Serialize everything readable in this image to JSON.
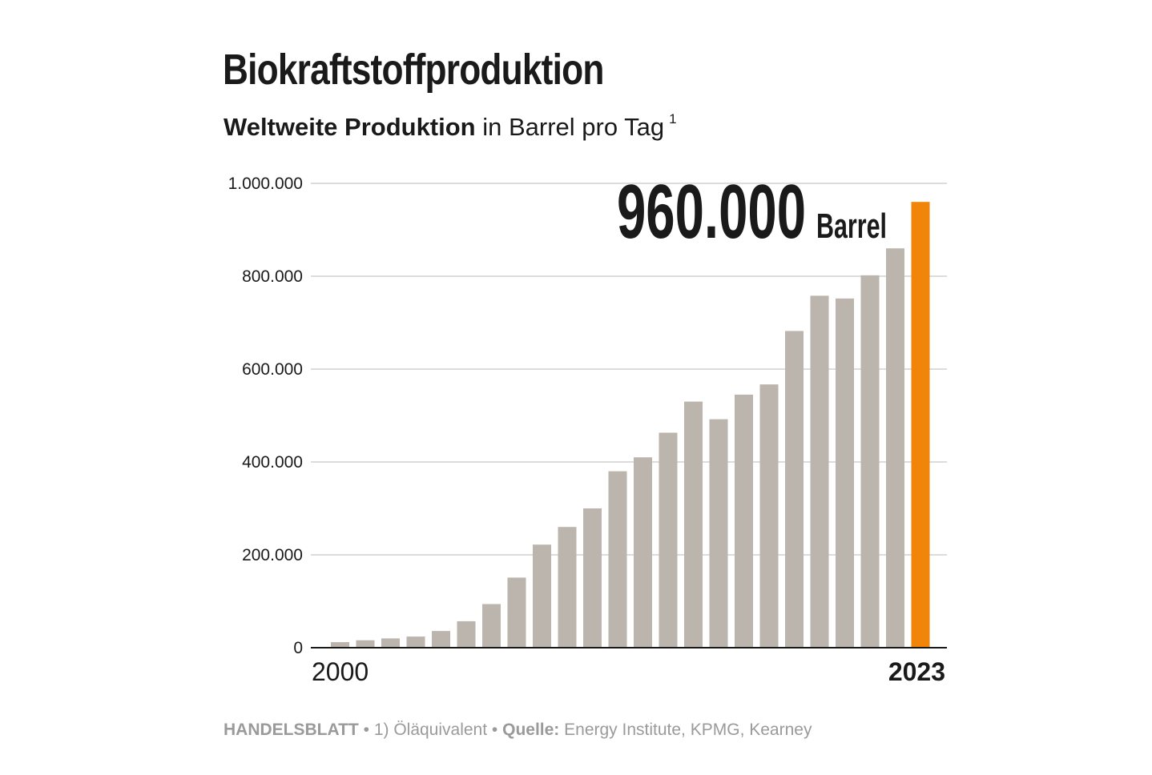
{
  "title": "Biokraftstoffproduktion",
  "subtitle": {
    "bold": "Weltweite Produktion",
    "rest": "in Barrel pro Tag",
    "footnote_mark": "1"
  },
  "highlight": {
    "value_text": "960.000",
    "unit_text": "Barrel"
  },
  "colors": {
    "bar": "#bbb5ad",
    "highlight_bar": "#f0850a",
    "grid": "#c8c8c8",
    "text": "#1a1a1a",
    "footer": "#9a9a9a"
  },
  "footer": {
    "brand": "HANDELSBLATT",
    "separator": "•",
    "note": "1) Öläquivalent",
    "source_label": "Quelle:",
    "source": "Energy Institute, KPMG, Kearney"
  },
  "chart_data": {
    "type": "bar",
    "categories": [
      "2000",
      "2001",
      "2002",
      "2003",
      "2004",
      "2005",
      "2006",
      "2007",
      "2008",
      "2009",
      "2010",
      "2011",
      "2012",
      "2013",
      "2014",
      "2015",
      "2016",
      "2017",
      "2018",
      "2019",
      "2020",
      "2021",
      "2022",
      "2023"
    ],
    "x_tick_labels": {
      "first": "2000",
      "last": "2023"
    },
    "values": [
      12000,
      16000,
      20000,
      24000,
      36000,
      57000,
      94000,
      151000,
      222000,
      260000,
      300000,
      380000,
      410000,
      463000,
      530000,
      492000,
      545000,
      567000,
      682000,
      758000,
      752000,
      802000,
      860000,
      960000
    ],
    "highlight_index": 23,
    "ylim": [
      0,
      1000000
    ],
    "y_ticks": [
      0,
      200000,
      400000,
      600000,
      800000,
      1000000
    ],
    "y_tick_labels": [
      "0",
      "200.000",
      "400.000",
      "600.000",
      "800.000",
      "1.000.000"
    ],
    "grid": true,
    "legend": "none"
  }
}
